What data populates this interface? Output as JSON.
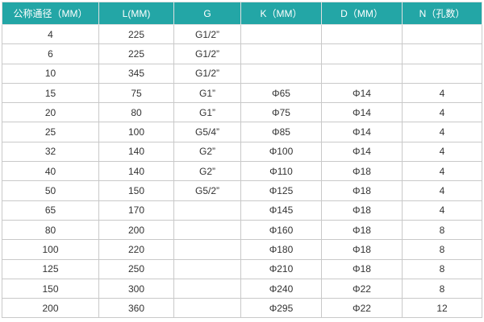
{
  "table": {
    "header": [
      "公称通径（MM）",
      "L(MM)",
      "G",
      "K（MM）",
      "D（MM）",
      "N（孔数）"
    ],
    "rows": [
      [
        "4",
        "225",
        "G1/2”",
        null,
        null,
        null
      ],
      [
        "6",
        "225",
        "G1/2”",
        null,
        null,
        null
      ],
      [
        "10",
        "345",
        "G1/2”",
        null,
        null,
        null
      ],
      [
        "15",
        "75",
        "G1”",
        "Φ65",
        "Φ14",
        "4"
      ],
      [
        "20",
        "80",
        "G1”",
        "Φ75",
        "Φ14",
        "4"
      ],
      [
        "25",
        "100",
        "G5/4”",
        "Φ85",
        "Φ14",
        "4"
      ],
      [
        "32",
        "140",
        "G2”",
        "Φ100",
        "Φ14",
        "4"
      ],
      [
        "40",
        "140",
        "G2”",
        "Φ110",
        "Φ18",
        "4"
      ],
      [
        "50",
        "150",
        "G5/2”",
        "Φ125",
        "Φ18",
        "4"
      ],
      [
        "65",
        "170",
        null,
        "Φ145",
        "Φ18",
        "4"
      ],
      [
        "80",
        "200",
        null,
        "Φ160",
        "Φ18",
        "8"
      ],
      [
        "100",
        "220",
        null,
        "Φ180",
        "Φ18",
        "8"
      ],
      [
        "125",
        "250",
        null,
        "Φ210",
        "Φ18",
        "8"
      ],
      [
        "150",
        "300",
        null,
        "Φ240",
        "Φ22",
        "8"
      ],
      [
        "200",
        "360",
        null,
        "Φ295",
        "Φ22",
        "12"
      ]
    ]
  }
}
